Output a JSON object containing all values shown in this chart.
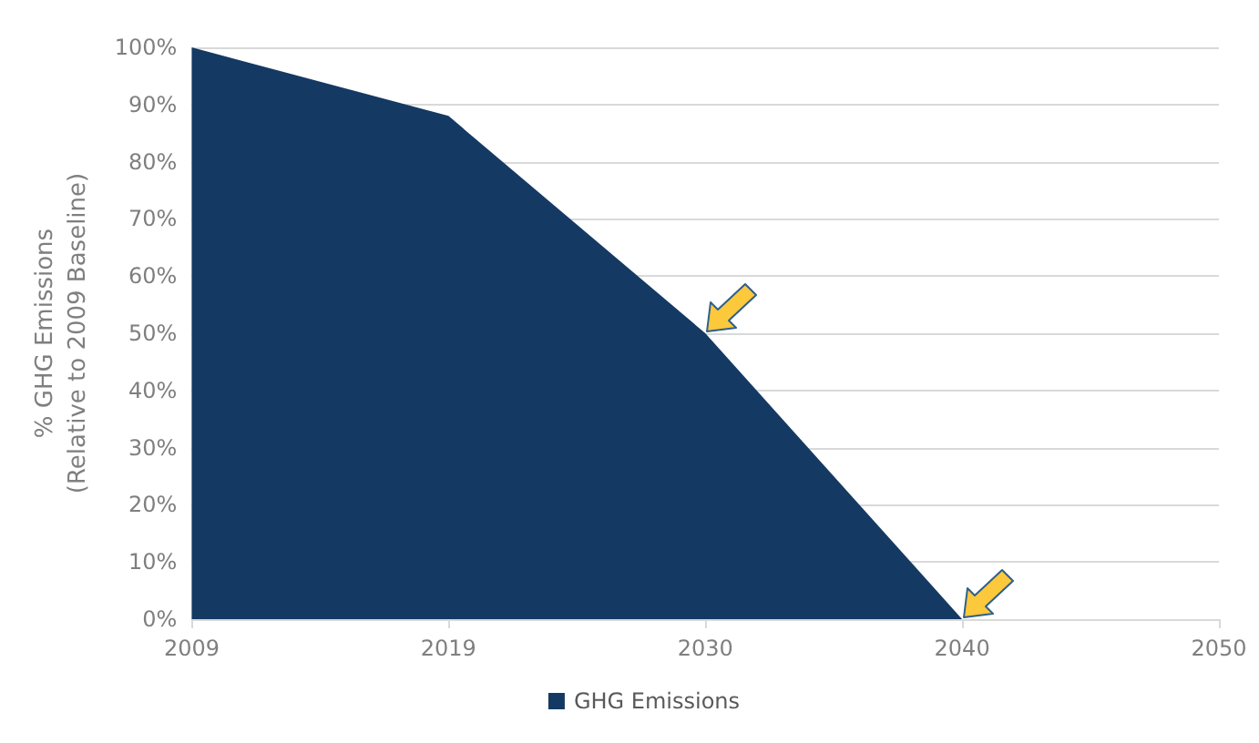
{
  "chart_data": {
    "type": "area",
    "ylabel": "% GHG Emissions\n(Relative to 2009 Baseline)",
    "categories": [
      "2009",
      "2019",
      "2030",
      "2040",
      "2050"
    ],
    "series": [
      {
        "name": "GHG Emissions",
        "color": "#143963",
        "values": [
          100,
          88,
          50,
          0,
          null
        ]
      }
    ],
    "ylim": [
      0,
      100
    ],
    "yticks": [
      {
        "value": 0,
        "label": "0%"
      },
      {
        "value": 10,
        "label": "10%"
      },
      {
        "value": 20,
        "label": "20%"
      },
      {
        "value": 30,
        "label": "30%"
      },
      {
        "value": 40,
        "label": "40%"
      },
      {
        "value": 50,
        "label": "50%"
      },
      {
        "value": 60,
        "label": "60%"
      },
      {
        "value": 70,
        "label": "70%"
      },
      {
        "value": 80,
        "label": "80%"
      },
      {
        "value": 90,
        "label": "90%"
      },
      {
        "value": 100,
        "label": "100%"
      }
    ],
    "grid": "y",
    "legend": "bottom"
  }
}
